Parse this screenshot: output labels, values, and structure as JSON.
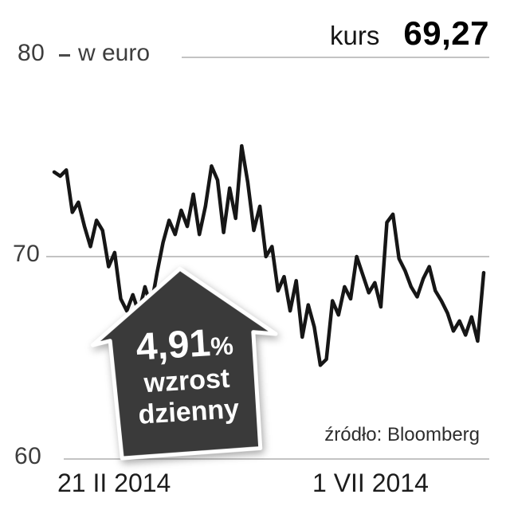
{
  "header": {
    "kurs_label": "kurs",
    "kurs_value": "69,27"
  },
  "y_axis": {
    "top": "80",
    "mid": "70",
    "bottom": "60",
    "unit": "w euro"
  },
  "x_axis": {
    "left": "21 II 2014",
    "right": "1 VII 2014"
  },
  "badge": {
    "value": "4,91",
    "sign": "%",
    "line1": "wzrost",
    "line2": "dzienny"
  },
  "source": "źródło: Bloomberg",
  "colors": {
    "line": "#161616",
    "grid": "#c3c3c3",
    "badge_fill": "#3a3a3a",
    "badge_border": "#ffffff",
    "text": "#111111"
  },
  "chart_data": {
    "type": "line",
    "title": "kurs",
    "unit": "w euro",
    "ylabel": "kurs (euro)",
    "ylim": [
      60,
      80
    ],
    "yticks": [
      60,
      70,
      80
    ],
    "x_start": "21 II 2014",
    "x_end": "1 VII 2014",
    "last_value": 69.27,
    "annotation": "4,91% wzrost dzienny",
    "legend": "none",
    "grid": "horizontal",
    "values": [
      74.3,
      74.1,
      74.4,
      72.3,
      72.8,
      71.6,
      70.6,
      71.9,
      71.4,
      69.6,
      70.3,
      68.0,
      67.4,
      68.2,
      67.3,
      68.6,
      67.6,
      69.3,
      70.8,
      71.9,
      71.2,
      72.4,
      71.6,
      73.2,
      71.2,
      72.6,
      74.6,
      73.9,
      71.3,
      73.5,
      72.0,
      75.6,
      73.8,
      71.4,
      72.6,
      70.1,
      70.6,
      68.4,
      69.1,
      67.4,
      68.9,
      66.1,
      67.7,
      66.6,
      64.7,
      65.0,
      67.9,
      67.2,
      68.6,
      68.0,
      70.1,
      69.2,
      68.3,
      68.8,
      67.6,
      71.8,
      72.2,
      70.0,
      69.4,
      68.6,
      68.1,
      69.0,
      69.6,
      68.4,
      67.9,
      67.3,
      66.4,
      66.9,
      66.2,
      67.1,
      65.9,
      69.3
    ]
  }
}
